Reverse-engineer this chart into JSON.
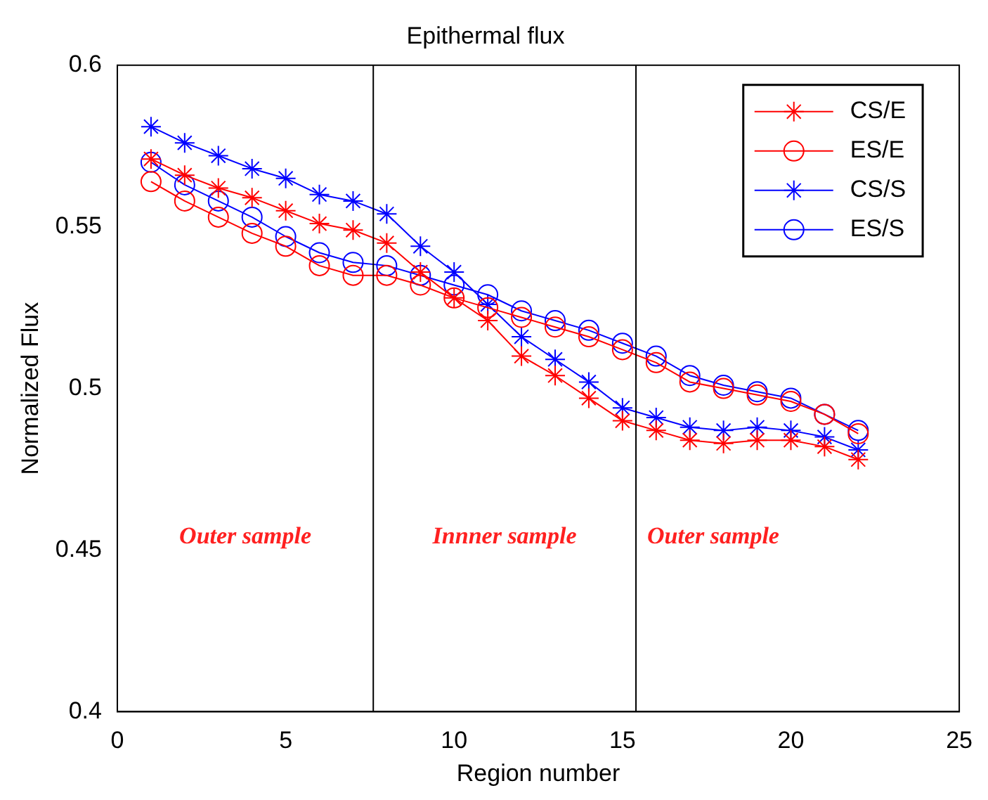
{
  "chart_data": {
    "type": "line",
    "title": "Epithermal flux",
    "xlabel": "Region number",
    "ylabel": "Normalized Flux",
    "x": [
      1,
      2,
      3,
      4,
      5,
      6,
      7,
      8,
      9,
      10,
      11,
      12,
      13,
      14,
      15,
      16,
      17,
      18,
      19,
      20,
      21,
      22
    ],
    "series": [
      {
        "name": "CS/E",
        "color": "#ff0000",
        "marker": "cross",
        "values": [
          0.571,
          0.566,
          0.562,
          0.559,
          0.555,
          0.551,
          0.549,
          0.545,
          0.536,
          0.528,
          0.521,
          0.51,
          0.504,
          0.497,
          0.49,
          0.487,
          0.484,
          0.483,
          0.484,
          0.484,
          0.482,
          0.478
        ]
      },
      {
        "name": "ES/E",
        "color": "#ff0000",
        "marker": "circle",
        "values": [
          0.564,
          0.558,
          0.553,
          0.548,
          0.544,
          0.538,
          0.535,
          0.535,
          0.532,
          0.528,
          0.525,
          0.522,
          0.519,
          0.516,
          0.512,
          0.508,
          0.502,
          0.5,
          0.498,
          0.496,
          0.492,
          0.486
        ]
      },
      {
        "name": "CS/S",
        "color": "#0000ff",
        "marker": "cross",
        "values": [
          0.581,
          0.576,
          0.572,
          0.568,
          0.565,
          0.56,
          0.558,
          0.554,
          0.544,
          0.536,
          0.526,
          0.516,
          0.509,
          0.502,
          0.494,
          0.491,
          0.488,
          0.487,
          0.488,
          0.487,
          0.485,
          0.481
        ]
      },
      {
        "name": "ES/S",
        "color": "#0000ff",
        "marker": "circle",
        "values": [
          0.57,
          0.563,
          0.558,
          0.553,
          0.547,
          0.542,
          0.539,
          0.538,
          0.535,
          0.532,
          0.529,
          0.524,
          0.521,
          0.518,
          0.514,
          0.51,
          0.504,
          0.501,
          0.499,
          0.497,
          0.492,
          0.487
        ]
      }
    ],
    "xlim": [
      0,
      25
    ],
    "xticks": [
      0,
      5,
      10,
      15,
      20,
      25
    ],
    "ylim": [
      0.4,
      0.6
    ],
    "yticks": [
      0.4,
      0.45,
      0.5,
      0.55,
      0.6
    ],
    "ref_lines": [
      {
        "axis": "x",
        "value": 7.6,
        "color": "#000000"
      },
      {
        "axis": "x",
        "value": 15.4,
        "color": "#000000"
      }
    ],
    "annotations": [
      "Outer sample",
      "Innner sample",
      "Outer sample"
    ],
    "grid": false,
    "legend": "top right"
  }
}
